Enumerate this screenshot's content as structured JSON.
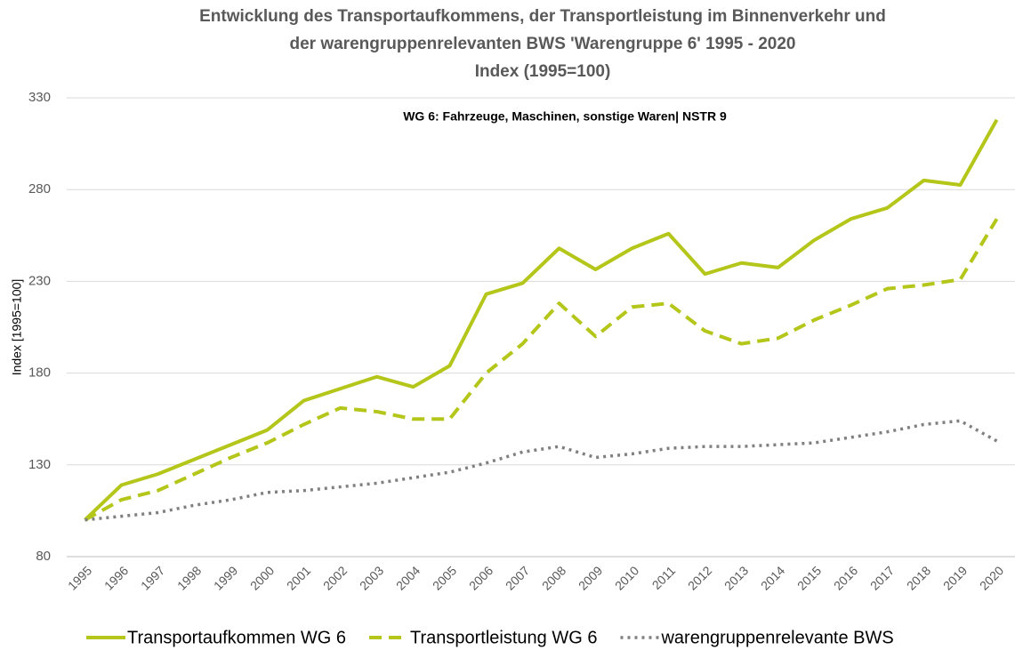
{
  "chart_data": {
    "type": "line",
    "title": [
      "Entwicklung des Transportaufkommens, der Transportleistung im Binnenverkehr und",
      "der warengruppenrelevanten BWS 'Warengruppe 6'  1995 - 2020",
      "Index (1995=100)"
    ],
    "annotation": "WG 6: Fahrzeuge, Maschinen, sonstige Waren| NSTR 9",
    "y_label": "Index [1995=100]",
    "categories": [
      "1995",
      "1996",
      "1997",
      "1998",
      "1999",
      "2000",
      "2001",
      "2002",
      "2003",
      "2004",
      "2005",
      "2006",
      "2007",
      "2008",
      "2009",
      "2010",
      "2011",
      "2012",
      "2013",
      "2014",
      "2015",
      "2016",
      "2017",
      "2018",
      "2019",
      "2020"
    ],
    "series": [
      {
        "name": "Transportaufkommen WG 6",
        "color": "#b4c619",
        "dash": "solid",
        "values": [
          100,
          119,
          125,
          133,
          141,
          149,
          165,
          171.5,
          178,
          172.5,
          184,
          223,
          229,
          248,
          236.5,
          248,
          256,
          234,
          240,
          237.5,
          252.5,
          264,
          270,
          285,
          282.5,
          318
        ]
      },
      {
        "name": "Transportleistung WG 6",
        "color": "#b4c619",
        "dash": "dashed",
        "values": [
          100,
          111,
          116,
          125,
          134,
          142,
          152,
          161,
          159,
          155,
          155,
          180,
          196,
          218,
          200,
          216,
          218,
          203,
          196,
          199,
          209,
          217,
          226,
          228,
          231,
          264
        ]
      },
      {
        "name": "warengruppenrelevante BWS",
        "color": "#808080",
        "dash": "dotted",
        "values": [
          100,
          102,
          104,
          108,
          111,
          115,
          116,
          118,
          120,
          123,
          126,
          131,
          137,
          140,
          134,
          136,
          139,
          140,
          140,
          141,
          142,
          145,
          148,
          152,
          154,
          143
        ]
      }
    ],
    "ylim": [
      80,
      330
    ],
    "yticks": [
      80,
      130,
      180,
      230,
      280,
      330
    ],
    "grid": true
  }
}
